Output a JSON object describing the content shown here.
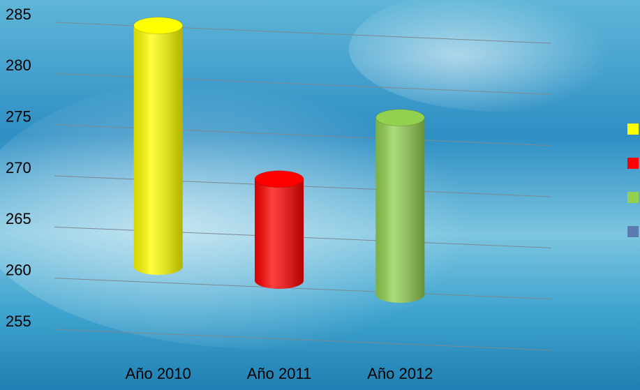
{
  "chart_data": {
    "type": "bar",
    "categories": [
      "Año 2010",
      "Año 2011",
      "Año 2012"
    ],
    "series": [
      {
        "color": "#ffff00",
        "values": [
          284,
          null,
          null
        ]
      },
      {
        "color": "#ff0000",
        "values": [
          null,
          269,
          null
        ]
      },
      {
        "color": "#92d050",
        "values": [
          null,
          null,
          275
        ]
      },
      {
        "color": "#5b7bb0",
        "values": [
          null,
          null,
          null
        ]
      }
    ],
    "ylim": [
      255,
      285
    ],
    "yticks": [
      255,
      260,
      265,
      270,
      275,
      280,
      285
    ],
    "grid": true
  }
}
